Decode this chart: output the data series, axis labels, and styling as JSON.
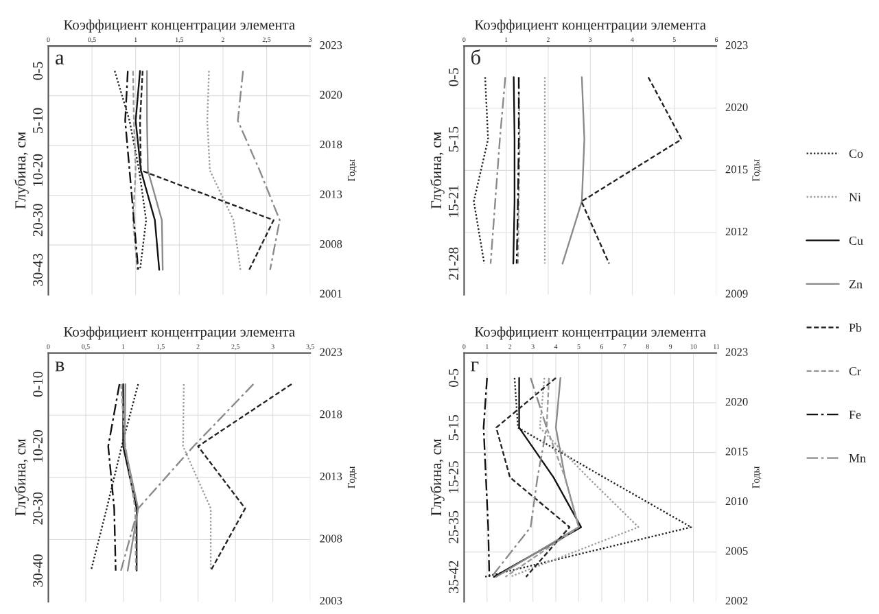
{
  "chart_data": [
    {
      "type": "line",
      "orientation": "horizontal",
      "xlabel": "Коэффициент концентрации элемента",
      "ylabel": "Глубина, см",
      "y2label": "Годы",
      "annotations": [
        "а",
        "2023",
        "2020",
        "2018",
        "2013",
        "2008",
        "2001"
      ],
      "categories": [
        "0-5",
        "5-10",
        "10-20",
        "20-30",
        "30-43"
      ],
      "xlim": [
        0,
        3
      ],
      "xticks": [
        0,
        {
          "value": 0.5,
          "label": "0,5"
        },
        1,
        {
          "value": 1.5,
          "label": "1,5"
        },
        2,
        {
          "value": 2.5,
          "label": "2,5"
        },
        3
      ],
      "grid": true,
      "series": [
        {
          "color": "#222222",
          "line_style": "dotted",
          "values": [
            0.76,
            0.93,
            1.04,
            1.12,
            1.05
          ]
        },
        {
          "color": "#9a9a9a",
          "line_style": "dotted",
          "values": [
            1.84,
            1.82,
            1.85,
            2.12,
            2.2
          ]
        },
        {
          "color": "#111111",
          "line_style": "solid",
          "values": [
            1.05,
            1.0,
            1.06,
            1.22,
            1.27
          ]
        },
        {
          "color": "#8a8a8a",
          "line_style": "solid",
          "values": [
            1.13,
            1.13,
            1.14,
            1.3,
            1.31
          ]
        },
        {
          "color": "#222222",
          "line_style": "dashed",
          "values": [
            1.08,
            1.05,
            1.06,
            2.58,
            2.3
          ]
        },
        {
          "color": "#9a9a9a",
          "line_style": "dashed",
          "values": [
            0.97,
            0.98,
            1.0,
            0.97,
            1.02
          ]
        },
        {
          "color": "#111111",
          "line_style": "dashdot",
          "values": [
            0.91,
            0.88,
            0.93,
            0.98,
            1.03
          ]
        },
        {
          "color": "#8a8a8a",
          "line_style": "dashdot",
          "values": [
            2.23,
            2.17,
            2.42,
            2.65,
            2.54
          ]
        }
      ]
    },
    {
      "type": "line",
      "orientation": "horizontal",
      "xlabel": "Коэффициент концентрации элемента",
      "ylabel": "Глубина, см",
      "y2label": "Годы",
      "annotations": [
        "б",
        "2023",
        "2020",
        "2015",
        "2012",
        "2009"
      ],
      "categories": [
        "0-5",
        "5-15",
        "15-21",
        "21-28"
      ],
      "xlim": [
        0,
        6
      ],
      "xticks": [
        0,
        1,
        2,
        3,
        4,
        5,
        6
      ],
      "grid": true,
      "legend": "right",
      "series": [
        {
          "name": "Co",
          "color": "#222222",
          "line_style": "dotted",
          "values": [
            0.5,
            0.57,
            0.23,
            0.48
          ]
        },
        {
          "name": "Ni",
          "color": "#9a9a9a",
          "line_style": "dotted",
          "values": [
            1.92,
            1.92,
            1.92,
            1.92
          ]
        },
        {
          "name": "Cu",
          "color": "#111111",
          "line_style": "solid",
          "values": [
            1.18,
            1.2,
            1.2,
            1.17
          ]
        },
        {
          "name": "Zn",
          "color": "#8a8a8a",
          "line_style": "solid",
          "values": [
            2.8,
            2.86,
            2.8,
            2.34
          ]
        },
        {
          "name": "Pb",
          "color": "#222222",
          "line_style": "dashed",
          "values": [
            4.38,
            5.17,
            2.79,
            3.45
          ]
        },
        {
          "name": "Cr",
          "color": "#9a9a9a",
          "line_style": "dashed",
          "values": [
            1.3,
            1.32,
            1.3,
            1.28
          ]
        },
        {
          "name": "Fe",
          "color": "#111111",
          "line_style": "dashdot",
          "values": [
            1.3,
            1.3,
            1.28,
            1.25
          ]
        },
        {
          "name": "Mn",
          "color": "#8a8a8a",
          "line_style": "dashdot",
          "values": [
            0.98,
            0.85,
            0.74,
            0.63
          ]
        }
      ]
    },
    {
      "type": "line",
      "orientation": "horizontal",
      "xlabel": "Коэффициент концентрации элемента",
      "ylabel": "Глубина, см",
      "y2label": "Годы",
      "annotations": [
        "в",
        "2023",
        "2018",
        "2013",
        "2008",
        "2003"
      ],
      "categories": [
        "0-10",
        "10-20",
        "20-30",
        "30-40"
      ],
      "xlim": [
        0,
        3.5
      ],
      "xticks": [
        0,
        {
          "value": 0.5,
          "label": "0,5"
        },
        1,
        {
          "value": 1.5,
          "label": "1,5"
        },
        2,
        {
          "value": 2.5,
          "label": "2,5"
        },
        3,
        {
          "value": 3.5,
          "label": "3,5"
        }
      ],
      "grid": true,
      "series": [
        {
          "color": "#222222",
          "line_style": "dotted",
          "values": [
            1.2,
            0.98,
            0.78,
            0.57
          ]
        },
        {
          "color": "#9a9a9a",
          "line_style": "dotted",
          "values": [
            1.81,
            1.8,
            2.17,
            2.17
          ]
        },
        {
          "color": "#111111",
          "line_style": "solid",
          "values": [
            1.0,
            1.0,
            1.18,
            1.18
          ]
        },
        {
          "color": "#8a8a8a",
          "line_style": "solid",
          "values": [
            1.03,
            1.02,
            1.2,
            1.06
          ]
        },
        {
          "color": "#222222",
          "line_style": "dashed",
          "values": [
            3.25,
            2.0,
            2.63,
            2.17
          ]
        },
        {
          "color": "#9a9a9a",
          "line_style": "dashed",
          "values": [
            0.97,
            1.03,
            1.16,
            1.17
          ]
        },
        {
          "color": "#111111",
          "line_style": "dashdot",
          "values": [
            0.95,
            0.8,
            0.88,
            0.9
          ]
        },
        {
          "color": "#8a8a8a",
          "line_style": "dashdot",
          "values": [
            2.74,
            1.94,
            1.2,
            0.97
          ]
        }
      ]
    },
    {
      "type": "line",
      "orientation": "horizontal",
      "xlabel": "Коэффициент концентрации элемента",
      "ylabel": "Глубина, см",
      "y2label": "Годы",
      "annotations": [
        "г",
        "2023",
        "2020",
        "2015",
        "2010",
        "2005",
        "2002"
      ],
      "categories": [
        "0-5",
        "5-15",
        "15-25",
        "25-35",
        "35-42"
      ],
      "xlim": [
        0,
        11
      ],
      "xticks": [
        0,
        1,
        2,
        3,
        4,
        5,
        6,
        7,
        8,
        9,
        10,
        11
      ],
      "grid": true,
      "series": [
        {
          "color": "#222222",
          "line_style": "dotted",
          "values": [
            2.2,
            2.35,
            6.1,
            9.9,
            0.9
          ]
        },
        {
          "color": "#9a9a9a",
          "line_style": "dotted",
          "values": [
            3.5,
            3.3,
            5.4,
            7.6,
            2.0
          ]
        },
        {
          "color": "#111111",
          "line_style": "solid",
          "values": [
            2.4,
            2.4,
            3.9,
            5.1,
            1.3
          ]
        },
        {
          "color": "#8a8a8a",
          "line_style": "solid",
          "values": [
            4.2,
            4.0,
            4.4,
            5.0,
            1.4
          ]
        },
        {
          "color": "#222222",
          "line_style": "dashed",
          "values": [
            4.0,
            1.4,
            2.0,
            4.6,
            2.7
          ]
        },
        {
          "color": "#9a9a9a",
          "line_style": "dashed",
          "values": [
            3.7,
            3.6,
            4.4,
            5.0,
            1.8
          ]
        },
        {
          "color": "#111111",
          "line_style": "dashdot",
          "values": [
            1.0,
            0.85,
            0.95,
            1.05,
            1.1
          ]
        },
        {
          "color": "#8a8a8a",
          "line_style": "dashdot",
          "values": [
            2.9,
            3.6,
            3.2,
            2.9,
            1.2
          ]
        }
      ]
    }
  ]
}
